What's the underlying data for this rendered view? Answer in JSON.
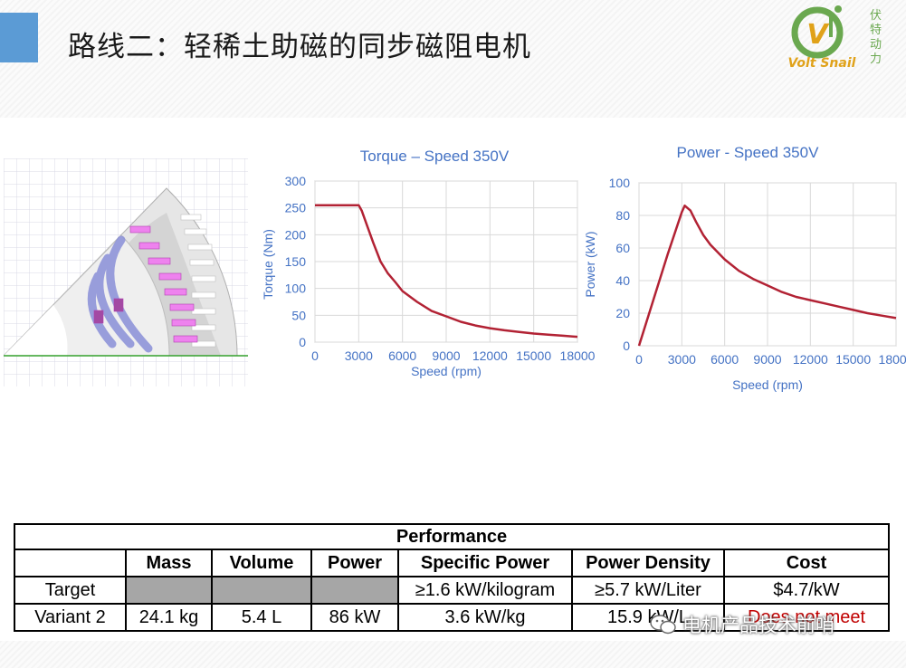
{
  "slide": {
    "title": "路线二：轻稀土助磁的同步磁阻电机",
    "accent_color": "#5b9bd5"
  },
  "logo": {
    "name": "Volt Snail",
    "chinese": [
      "伏",
      "特",
      "动",
      "力"
    ],
    "icon": "volt-snail-logo",
    "colors": {
      "ring": "#6aa84f",
      "text": "#e0a21a"
    }
  },
  "motor_diagram": {
    "icon": "motor-cross-section-icon"
  },
  "chart_data": [
    {
      "type": "line",
      "title": "Torque – Speed 350V",
      "xlabel": "Speed (rpm)",
      "ylabel": "Torque (Nm)",
      "xlim": [
        0,
        18000
      ],
      "ylim": [
        0,
        300
      ],
      "xticks": [
        0,
        3000,
        6000,
        9000,
        12000,
        15000,
        18000
      ],
      "yticks": [
        0,
        50,
        100,
        150,
        200,
        250,
        300
      ],
      "grid": true,
      "line_color": "#b22234",
      "title_color": "#4472c4",
      "x": [
        0,
        3000,
        3200,
        3600,
        4000,
        4500,
        5000,
        5500,
        6000,
        7000,
        8000,
        9000,
        10000,
        11000,
        12000,
        13000,
        14000,
        15000,
        16000,
        17000,
        18000
      ],
      "y": [
        255,
        255,
        245,
        215,
        185,
        150,
        128,
        112,
        95,
        75,
        58,
        48,
        38,
        31,
        26,
        22,
        19,
        16,
        14,
        12,
        10
      ]
    },
    {
      "type": "line",
      "title": "Power - Speed 350V",
      "xlabel": "Speed (rpm)",
      "ylabel": "Power (kW)",
      "xlim": [
        0,
        18000
      ],
      "ylim": [
        0,
        100
      ],
      "xticks": [
        0,
        3000,
        6000,
        9000,
        12000,
        15000,
        18000
      ],
      "yticks": [
        0,
        20,
        40,
        60,
        80,
        100
      ],
      "grid": true,
      "line_color": "#b22234",
      "title_color": "#4472c4",
      "x": [
        0,
        1000,
        2000,
        3000,
        3200,
        3600,
        4000,
        4500,
        5000,
        6000,
        7000,
        8000,
        9000,
        10000,
        11000,
        12000,
        13000,
        14000,
        15000,
        16000,
        17000,
        18000
      ],
      "y": [
        0,
        28,
        56,
        82,
        86,
        83,
        76,
        68,
        62,
        53,
        46,
        41,
        37,
        33,
        30,
        28,
        26,
        24,
        22,
        20,
        18.5,
        17
      ]
    }
  ],
  "table": {
    "title": "Performance",
    "columns": [
      "",
      "Mass",
      "Volume",
      "Power",
      "Specific Power",
      "Power Density",
      "Cost"
    ],
    "rows": [
      [
        "Target",
        "",
        "",
        "",
        "≥1.6 kW/kilogram",
        "≥5.7 kW/Liter",
        "$4.7/kW"
      ],
      [
        "Variant 2",
        "24.1 kg",
        "5.4 L",
        "86 kW",
        "3.6 kW/kg",
        "15.9 kW/L",
        "Does not meet"
      ]
    ],
    "grey_fill": "#a6a6a6",
    "alert_color": "#c00000"
  },
  "watermark": {
    "text": "电机产品技术前哨",
    "icon": "wechat-icon"
  }
}
